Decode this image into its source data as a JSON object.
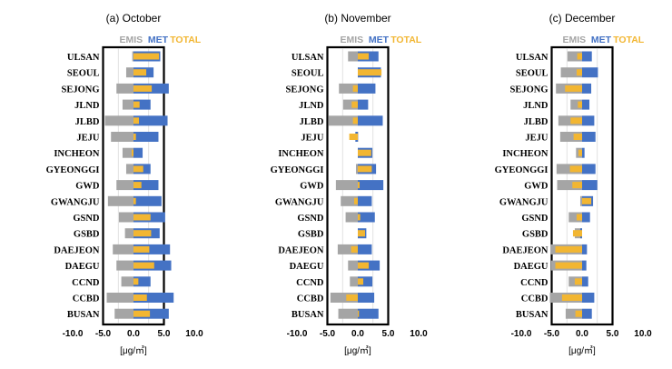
{
  "chart_data": [
    {
      "type": "bar",
      "orientation": "horizontal",
      "title": "(a) October",
      "xlabel": "[μg/㎥]",
      "xlim": [
        -10.0,
        10.0
      ],
      "xticks": [
        "-10.0",
        "-5.0",
        "0.0",
        "5.0",
        "10.0"
      ],
      "legend": [
        "EMIS",
        "MET",
        "TOTAL"
      ],
      "legend_position": "top-right",
      "categories": [
        "ULSAN",
        "SEOUL",
        "SEJONG",
        "JLND",
        "JLBD",
        "JEJU",
        "INCHEON",
        "GYEONGGI",
        "GWD",
        "GWANGJU",
        "GSND",
        "GSBD",
        "DAEJEON",
        "DAEGU",
        "CCND",
        "CCBD",
        "BUSAN"
      ],
      "series": [
        {
          "name": "EMIS",
          "values": [
            -0.2,
            -1.2,
            -2.8,
            -1.8,
            -4.7,
            -3.7,
            -1.8,
            -1.2,
            -2.8,
            -4.2,
            -2.4,
            -1.4,
            -3.4,
            -2.8,
            -2.0,
            -4.4,
            -3.1
          ]
        },
        {
          "name": "MET",
          "values": [
            4.4,
            3.3,
            5.8,
            2.8,
            5.6,
            4.1,
            1.5,
            2.8,
            4.1,
            4.6,
            5.2,
            4.3,
            6.0,
            6.2,
            2.8,
            6.6,
            5.8
          ]
        },
        {
          "name": "TOTAL",
          "values": [
            4.2,
            2.1,
            3.0,
            1.0,
            0.9,
            0.4,
            -0.3,
            1.6,
            1.3,
            0.4,
            2.8,
            2.9,
            2.6,
            3.4,
            0.8,
            2.2,
            2.7
          ]
        }
      ]
    },
    {
      "type": "bar",
      "orientation": "horizontal",
      "title": "(b) November",
      "xlabel": "[μg/㎥]",
      "xlim": [
        -10.0,
        10.0
      ],
      "xticks": [
        "-10.0",
        "-5.0",
        "0.0",
        "5.0",
        "10.0"
      ],
      "legend": [
        "EMIS",
        "MET",
        "TOTAL"
      ],
      "legend_position": "top-right",
      "categories": [
        "ULSAN",
        "SEOUL",
        "SEJONG",
        "JLND",
        "JLBD",
        "JEJU",
        "INCHEON",
        "GYEONGGI",
        "GWD",
        "GWANGJU",
        "GSND",
        "GSBD",
        "DAEJEON",
        "DAEGU",
        "CCND",
        "CCBD",
        "BUSAN"
      ],
      "series": [
        {
          "name": "EMIS",
          "values": [
            -1.6,
            0.1,
            -3.1,
            -2.4,
            -4.8,
            0.0,
            0.0,
            -0.3,
            -3.6,
            -2.8,
            -2.0,
            0.0,
            -3.3,
            -1.6,
            -1.3,
            -4.5,
            -3.2
          ]
        },
        {
          "name": "MET",
          "values": [
            3.4,
            3.8,
            2.9,
            1.7,
            4.1,
            -0.4,
            2.4,
            3.0,
            4.2,
            2.3,
            2.8,
            1.4,
            2.3,
            3.6,
            2.4,
            2.7,
            3.4
          ]
        },
        {
          "name": "TOTAL",
          "values": [
            1.8,
            3.9,
            -0.8,
            -1.0,
            -0.8,
            -1.4,
            2.2,
            2.3,
            0.3,
            -0.6,
            0.4,
            1.2,
            -1.1,
            1.8,
            0.9,
            -1.9,
            0.2
          ]
        }
      ]
    },
    {
      "type": "bar",
      "orientation": "horizontal",
      "title": "(c) December",
      "xlabel": "[μg/㎥]",
      "xlim": [
        -10.0,
        10.0
      ],
      "xticks": [
        "-10.0",
        "-5.0",
        "0.0",
        "5.0",
        "10.0"
      ],
      "legend": [
        "EMIS",
        "MET",
        "TOTAL"
      ],
      "legend_position": "top-right",
      "categories": [
        "ULSAN",
        "SEOUL",
        "SEJONG",
        "JLND",
        "JLBD",
        "JEJU",
        "INCHEON",
        "GYEONGGI",
        "GWD",
        "GWANGJU",
        "GSND",
        "GSBD",
        "DAEJEON",
        "DAEGU",
        "CCND",
        "CCBD",
        "BUSAN"
      ],
      "series": [
        {
          "name": "EMIS",
          "values": [
            -2.4,
            -3.5,
            -4.3,
            -1.9,
            -3.9,
            -3.6,
            -1.0,
            -4.2,
            -4.1,
            -0.3,
            -2.2,
            -1.2,
            -5.2,
            -5.1,
            -2.2,
            -5.3,
            -2.7
          ]
        },
        {
          "name": "MET",
          "values": [
            1.6,
            2.6,
            1.5,
            1.2,
            2.0,
            2.2,
            0.4,
            2.2,
            2.5,
            1.8,
            1.3,
            -0.3,
            0.8,
            0.7,
            1.0,
            2.0,
            1.6
          ]
        },
        {
          "name": "TOTAL",
          "values": [
            -0.8,
            -0.9,
            -2.8,
            -0.7,
            -1.9,
            -1.4,
            -0.6,
            -2.0,
            -1.6,
            1.5,
            -0.9,
            -1.5,
            -4.4,
            -4.4,
            -1.2,
            -3.3,
            -1.1
          ]
        }
      ]
    }
  ],
  "colors": {
    "EMIS": "#a5a5a5",
    "MET": "#4472c4",
    "TOTAL": "#f2b632",
    "grid": "#d9d9d9"
  }
}
